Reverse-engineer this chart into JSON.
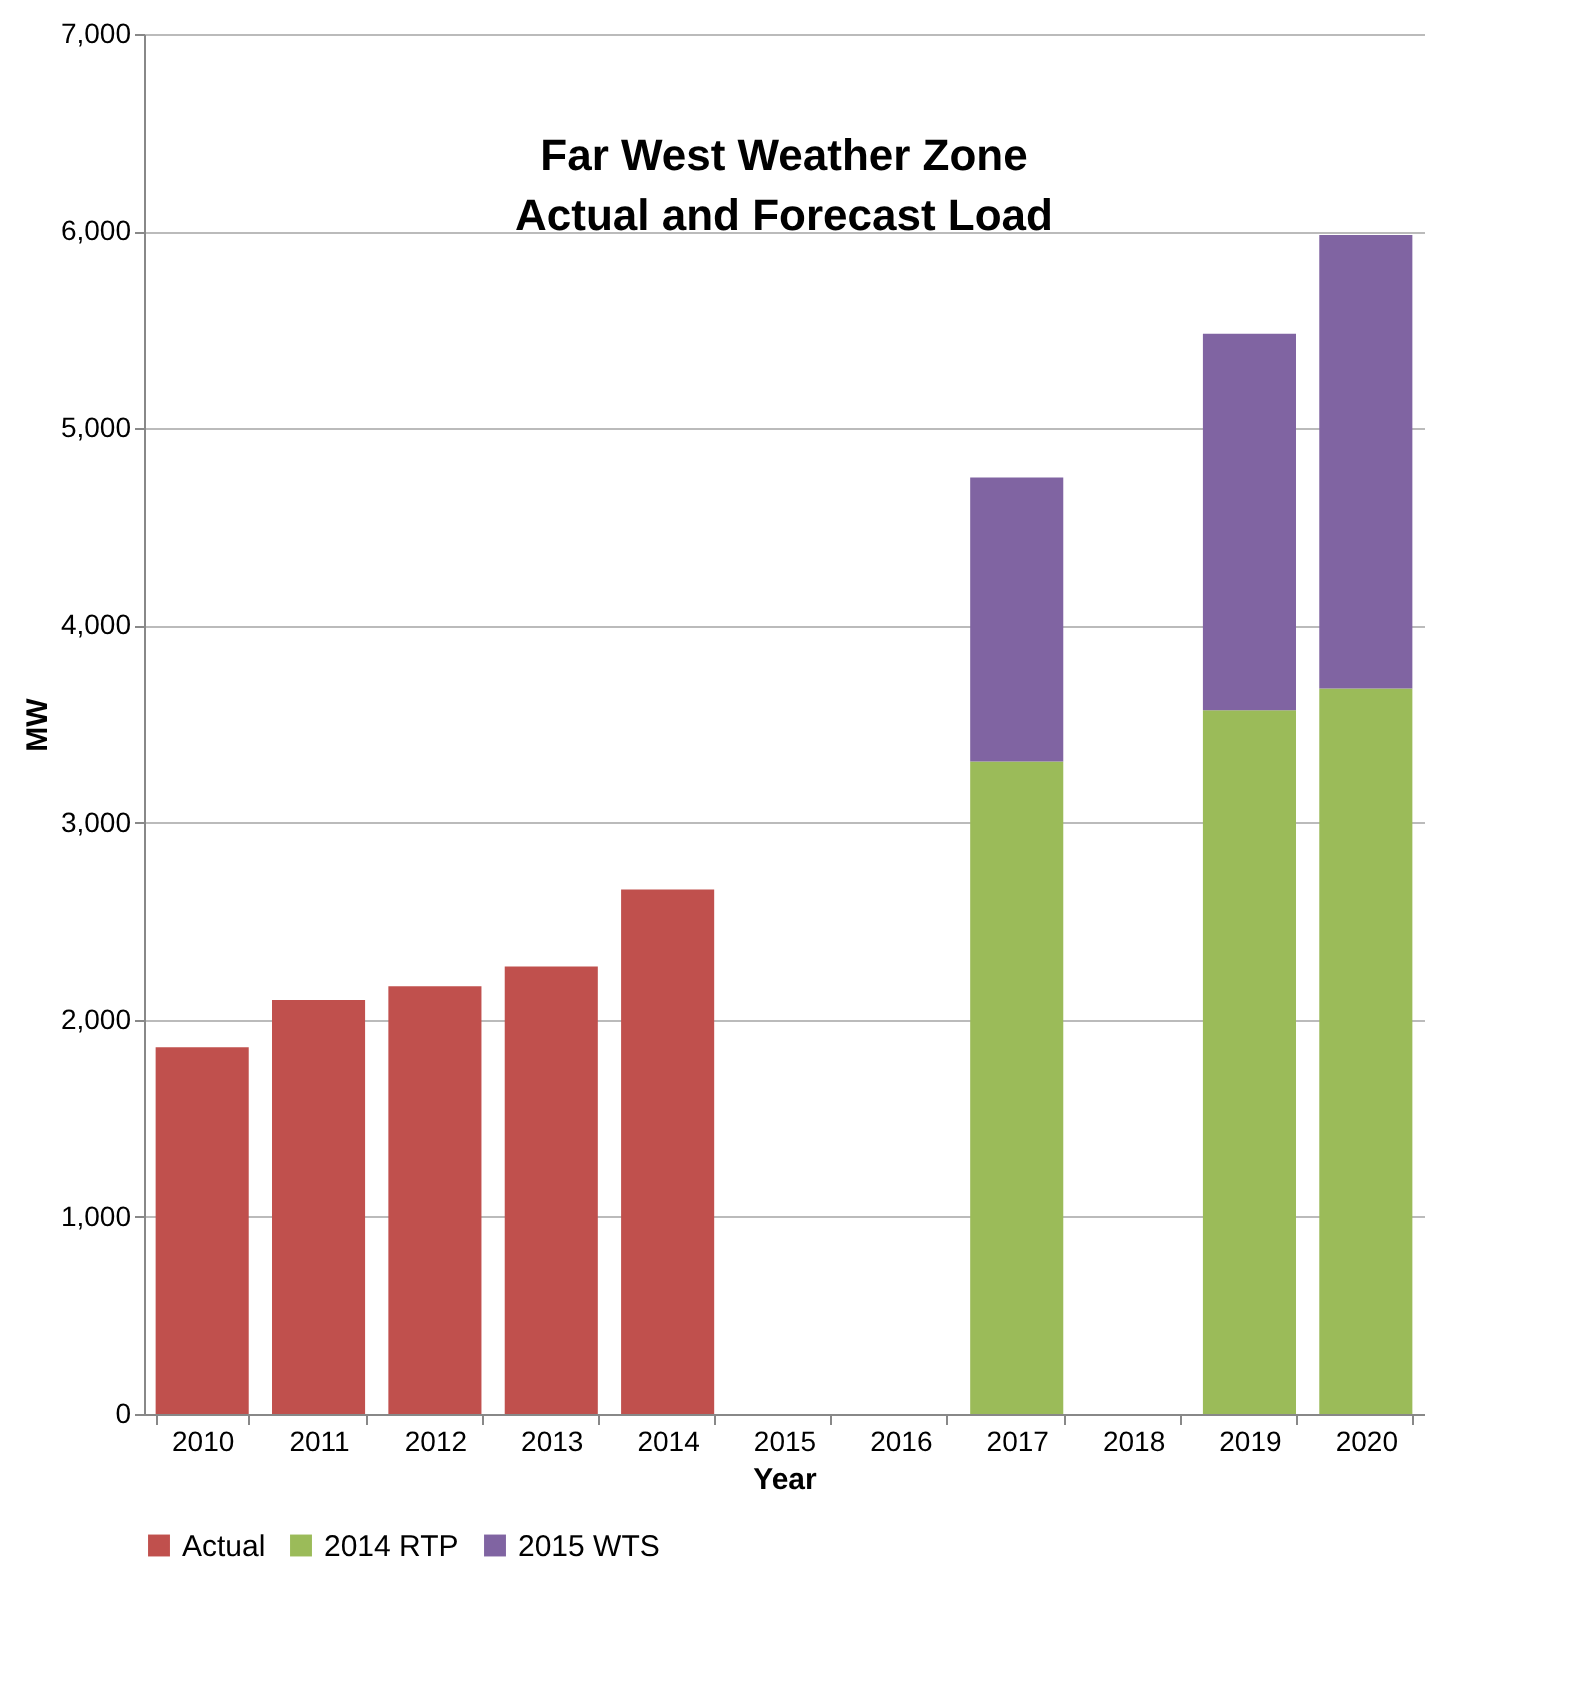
{
  "chart_data": {
    "type": "bar",
    "title": "Far West Weather Zone\nActual and Forecast Load",
    "xlabel": "Year",
    "ylabel": "MW",
    "categories": [
      "2010",
      "2011",
      "2012",
      "2013",
      "2014",
      "2015",
      "2016",
      "2017",
      "2018",
      "2019",
      "2020"
    ],
    "stacked": true,
    "series": [
      {
        "name": "Actual",
        "color": "#c0504d",
        "values": [
          1860,
          2100,
          2170,
          2270,
          2660,
          null,
          null,
          null,
          null,
          null,
          null
        ]
      },
      {
        "name": "2014 RTP",
        "color": "#9bbb59",
        "values": [
          null,
          null,
          null,
          null,
          null,
          null,
          null,
          3310,
          null,
          3570,
          3680
        ]
      },
      {
        "name": "2015 WTS",
        "color": "#8064a2",
        "values": [
          null,
          null,
          null,
          null,
          null,
          null,
          null,
          1440,
          null,
          1910,
          2300
        ]
      }
    ],
    "ylim": [
      0,
      7000
    ],
    "yticks": [
      {
        "value": 0,
        "label": "0"
      },
      {
        "value": 1000,
        "label": "1,000"
      },
      {
        "value": 2000,
        "label": "2,000"
      },
      {
        "value": 3000,
        "label": "3,000"
      },
      {
        "value": 4000,
        "label": "4,000"
      },
      {
        "value": 5000,
        "label": "5,000"
      },
      {
        "value": 6000,
        "label": "6,000"
      },
      {
        "value": 7000,
        "label": "7,000"
      }
    ],
    "grid": "y",
    "legend": "bottom"
  }
}
